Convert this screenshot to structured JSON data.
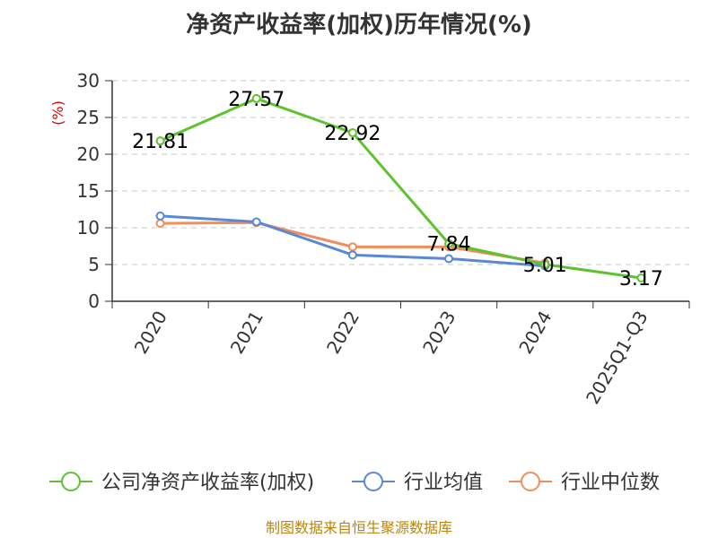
{
  "chart_data": {
    "type": "line",
    "title": "净资产收益率(加权)历年情况(%)",
    "ylabel": "(%)",
    "categories": [
      "2020",
      "2021",
      "2022",
      "2023",
      "2024",
      "2025Q1-Q3"
    ],
    "ylim": [
      0,
      30
    ],
    "yticks": [
      "0",
      "5",
      "10",
      "15",
      "20",
      "25",
      "30"
    ],
    "grid": true,
    "legend_position": "bottom",
    "series": [
      {
        "name": "公司净资产收益率(加权)",
        "color": "#5ec22e",
        "values": [
          21.81,
          27.57,
          22.92,
          7.84,
          5.01,
          3.17
        ],
        "labels": [
          "21.81",
          "27.57",
          "22.92",
          "7.84",
          "5.01",
          "3.17"
        ]
      },
      {
        "name": "行业均值",
        "color": "#5b87d8",
        "values": [
          11.6,
          10.8,
          6.3,
          5.8,
          4.8,
          null
        ]
      },
      {
        "name": "行业中位数",
        "color": "#f28c5a",
        "values": [
          10.6,
          10.7,
          7.4,
          7.4,
          5.2,
          null
        ]
      }
    ],
    "source": "制图数据来自恒生聚源数据库"
  }
}
